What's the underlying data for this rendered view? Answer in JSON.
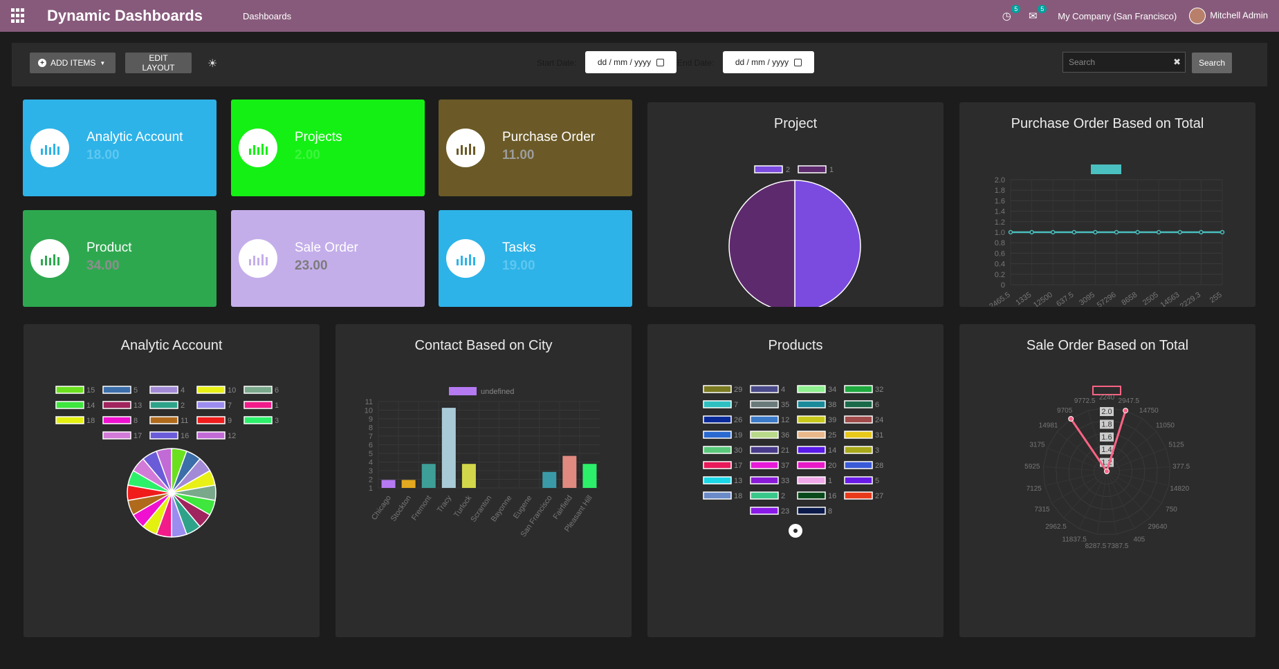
{
  "app": {
    "title": "Dynamic Dashboards",
    "menu": "Dashboards",
    "company": "My Company (San Francisco)",
    "user": "Mitchell Admin",
    "activity_count": "5",
    "message_count": "5",
    "activity_icon": "clock-icon",
    "message_icon": "chat-icon"
  },
  "controls": {
    "add_items": "ADD ITEMS",
    "edit_layout": "EDIT LAYOUT",
    "start_date_label": "Start Date:",
    "start_date_value": "dd / mm / yyyy",
    "end_date_label": "End Date:",
    "end_date_value": "dd / mm / yyyy",
    "search_placeholder": "Search",
    "search_button": "Search"
  },
  "tiles": [
    {
      "title": "Analytic Account",
      "value": "18.00",
      "bg": "#2eb3e8",
      "value_color": "#5ec7f0",
      "icon_color": "#2eb3e8"
    },
    {
      "title": "Projects",
      "value": "2.00",
      "bg": "#14f014",
      "value_color": "#3df53d",
      "icon_color": "#14f014"
    },
    {
      "title": "Purchase Order",
      "value": "11.00",
      "bg": "#6b5a27",
      "value_color": "#9c9c9c",
      "icon_color": "#6b5a27"
    },
    {
      "title": "Product",
      "value": "34.00",
      "bg": "#2ea84f",
      "value_color": "#8e8e8e",
      "icon_color": "#2ea84f"
    },
    {
      "title": "Sale Order",
      "value": "23.00",
      "bg": "#c4aeea",
      "value_color": "#7c7c7c",
      "icon_color": "#c4aeea"
    },
    {
      "title": "Tasks",
      "value": "19.00",
      "bg": "#2eb3e8",
      "value_color": "#5ec7f0",
      "icon_color": "#2eb3e8"
    }
  ],
  "cards": {
    "project": "Project",
    "purchase": "Purchase Order Based on Total",
    "analytic": "Analytic Account",
    "contact": "Contact Based on City",
    "products": "Products",
    "sale": "Sale Order Based on Total"
  },
  "chart_data": [
    {
      "id": "project",
      "type": "pie",
      "title": "Project",
      "legend": [
        {
          "label": "2",
          "color": "#7b4be0"
        },
        {
          "label": "1",
          "color": "#5e2a6e"
        }
      ],
      "values": [
        1,
        1
      ],
      "colors": [
        "#7b4be0",
        "#5e2a6e"
      ]
    },
    {
      "id": "purchase",
      "type": "line",
      "title": "Purchase Order Based on Total",
      "series_color": "#4bc0c0",
      "x": [
        "2465.5",
        "1335",
        "12500",
        "637.5",
        "3095",
        "57296",
        "8658",
        "2505",
        "14563",
        "2229.3",
        "255"
      ],
      "values": [
        1,
        1,
        1,
        1,
        1,
        1,
        1,
        1,
        1,
        1,
        1
      ],
      "yticks": [
        "2.0",
        "1.8",
        "1.6",
        "1.4",
        "1.2",
        "1.0",
        "0.8",
        "0.6",
        "0.4",
        "0.2",
        "0"
      ],
      "ylim": [
        0,
        2
      ]
    },
    {
      "id": "analytic",
      "type": "pie",
      "title": "Analytic Account",
      "legend": [
        {
          "label": "15",
          "color": "#6be01f"
        },
        {
          "label": "5",
          "color": "#3c6eaa"
        },
        {
          "label": "4",
          "color": "#a38ad6"
        },
        {
          "label": "10",
          "color": "#e8f016"
        },
        {
          "label": "6",
          "color": "#7aa88a"
        },
        {
          "label": "14",
          "color": "#3ee63e"
        },
        {
          "label": "13",
          "color": "#a0245e"
        },
        {
          "label": "2",
          "color": "#2fa38a"
        },
        {
          "label": "7",
          "color": "#9b8cf0"
        },
        {
          "label": "1",
          "color": "#f21b8a"
        },
        {
          "label": "18",
          "color": "#e4f010"
        },
        {
          "label": "8",
          "color": "#f010d0"
        },
        {
          "label": "11",
          "color": "#b06a1c"
        },
        {
          "label": "9",
          "color": "#f01c1c"
        },
        {
          "label": "3",
          "color": "#2cf06a"
        },
        {
          "label": "17",
          "color": "#d27ad8"
        },
        {
          "label": "16",
          "color": "#6a5cd8"
        },
        {
          "label": "12",
          "color": "#c26ad6"
        }
      ],
      "values": [
        1,
        1,
        1,
        1,
        1,
        1,
        1,
        1,
        1,
        1,
        1,
        1,
        1,
        1,
        1,
        1,
        1,
        1
      ]
    },
    {
      "id": "contact",
      "type": "bar",
      "title": "Contact Based on City",
      "legend": [
        {
          "label": "undefined",
          "color": "#b57af2"
        }
      ],
      "categories": [
        "Chicago",
        "Stockton",
        "Fremont",
        "Tracy",
        "Turlock",
        "Scranton",
        "Bayonne",
        "Eugene",
        "San Francisco",
        "Fairfield",
        "Pleasant Hill"
      ],
      "values": [
        1,
        1,
        3,
        10,
        3,
        0,
        0,
        0,
        2,
        4,
        3
      ],
      "colors": [
        "#b57af2",
        "#e2a820",
        "#3e9f98",
        "#a9cbd8",
        "#d3d84a",
        "#555",
        "#555",
        "#555",
        "#3a9aa8",
        "#e08a80",
        "#2cf06a"
      ],
      "yticks": [
        "11",
        "10",
        "9",
        "8",
        "7",
        "6",
        "5",
        "4",
        "3",
        "2",
        "1"
      ],
      "ylim": [
        0,
        11
      ]
    },
    {
      "id": "products",
      "type": "pie",
      "title": "Products",
      "legend": [
        {
          "label": "29",
          "color": "#7a7a20"
        },
        {
          "label": "4",
          "color": "#4a4a8a"
        },
        {
          "label": "34",
          "color": "#8ef08e"
        },
        {
          "label": "32",
          "color": "#1ea83e"
        },
        {
          "label": "7",
          "color": "#2ec0c0"
        },
        {
          "label": "35",
          "color": "#6a7a7a"
        },
        {
          "label": "38",
          "color": "#1a8a9a"
        },
        {
          "label": "6",
          "color": "#1a6a4a"
        },
        {
          "label": "26",
          "color": "#0a2a9a"
        },
        {
          "label": "12",
          "color": "#3a7ac8"
        },
        {
          "label": "39",
          "color": "#c8c81a"
        },
        {
          "label": "24",
          "color": "#a04a4a"
        },
        {
          "label": "19",
          "color": "#2a6ad0"
        },
        {
          "label": "36",
          "color": "#b8d88a"
        },
        {
          "label": "25",
          "color": "#e8b88a"
        },
        {
          "label": "31",
          "color": "#e8c81a"
        },
        {
          "label": "30",
          "color": "#5ac87a"
        },
        {
          "label": "21",
          "color": "#4a3a8a"
        },
        {
          "label": "14",
          "color": "#5a1ae8"
        },
        {
          "label": "3",
          "color": "#a8a81a"
        },
        {
          "label": "17",
          "color": "#e81a5a"
        },
        {
          "label": "37",
          "color": "#e81ad8"
        },
        {
          "label": "20",
          "color": "#e81ac8"
        },
        {
          "label": "28",
          "color": "#3a5ad8"
        },
        {
          "label": "13",
          "color": "#1ad8e8"
        },
        {
          "label": "33",
          "color": "#8a1ad8"
        },
        {
          "label": "1",
          "color": "#f0a8e8"
        },
        {
          "label": "5",
          "color": "#6a1ae8"
        },
        {
          "label": "18",
          "color": "#6a8ac8"
        },
        {
          "label": "2",
          "color": "#3ac88a"
        },
        {
          "label": "16",
          "color": "#0a4a1a"
        },
        {
          "label": "27",
          "color": "#e83a1a"
        },
        {
          "label": "23",
          "color": "#8a1ae8"
        },
        {
          "label": "8",
          "color": "#0a1a4a"
        }
      ]
    },
    {
      "id": "sale",
      "type": "radar",
      "title": "Sale Order Based on Total",
      "series_color": "#ff6384",
      "labels": [
        "2240",
        "2947.5",
        "14750",
        "11050",
        "5125",
        "377.5",
        "14820",
        "750",
        "29640",
        "405",
        "7387.5",
        "8287.5",
        "11837.5",
        "2962.5",
        "7315",
        "7125",
        "5925",
        "3175",
        "14981",
        "9705",
        "9772.5"
      ],
      "ticks": [
        "2.0",
        "1.8",
        "1.6",
        "1.4",
        "1.2"
      ],
      "values": [
        0,
        2,
        0,
        0,
        0,
        0,
        0,
        0,
        0,
        0,
        0,
        0,
        0,
        0,
        0,
        0,
        0,
        0,
        0,
        2,
        0
      ],
      "rmax": 2
    }
  ]
}
